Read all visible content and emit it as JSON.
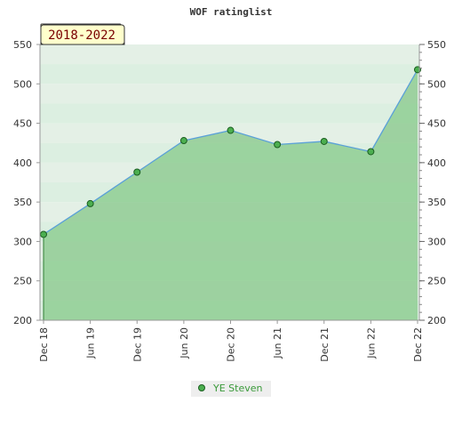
{
  "chart_data": {
    "type": "line",
    "title": "WOF ratinglist",
    "badge": "2018-2022",
    "categories": [
      "Dec 18",
      "Jun 19",
      "Dec 19",
      "Jun 20",
      "Dec 20",
      "Jun 21",
      "Dec 21",
      "Jun 22",
      "Dec 22"
    ],
    "yticks": [
      200,
      250,
      300,
      350,
      400,
      450,
      500,
      550
    ],
    "ylim": [
      200,
      550
    ],
    "series": [
      {
        "name": "YE Steven",
        "values": [
          309,
          348,
          388,
          428,
          441,
          423,
          427,
          414,
          518
        ]
      }
    ],
    "legend_position": "bottom-center",
    "colors": {
      "line": "#5aa0d8",
      "marker": "#4caf50",
      "area": "#66bb6a",
      "band_light": "#e8f5ec",
      "band_mid": "#c4e4cc",
      "badge_bg": "#ffffcc"
    }
  }
}
